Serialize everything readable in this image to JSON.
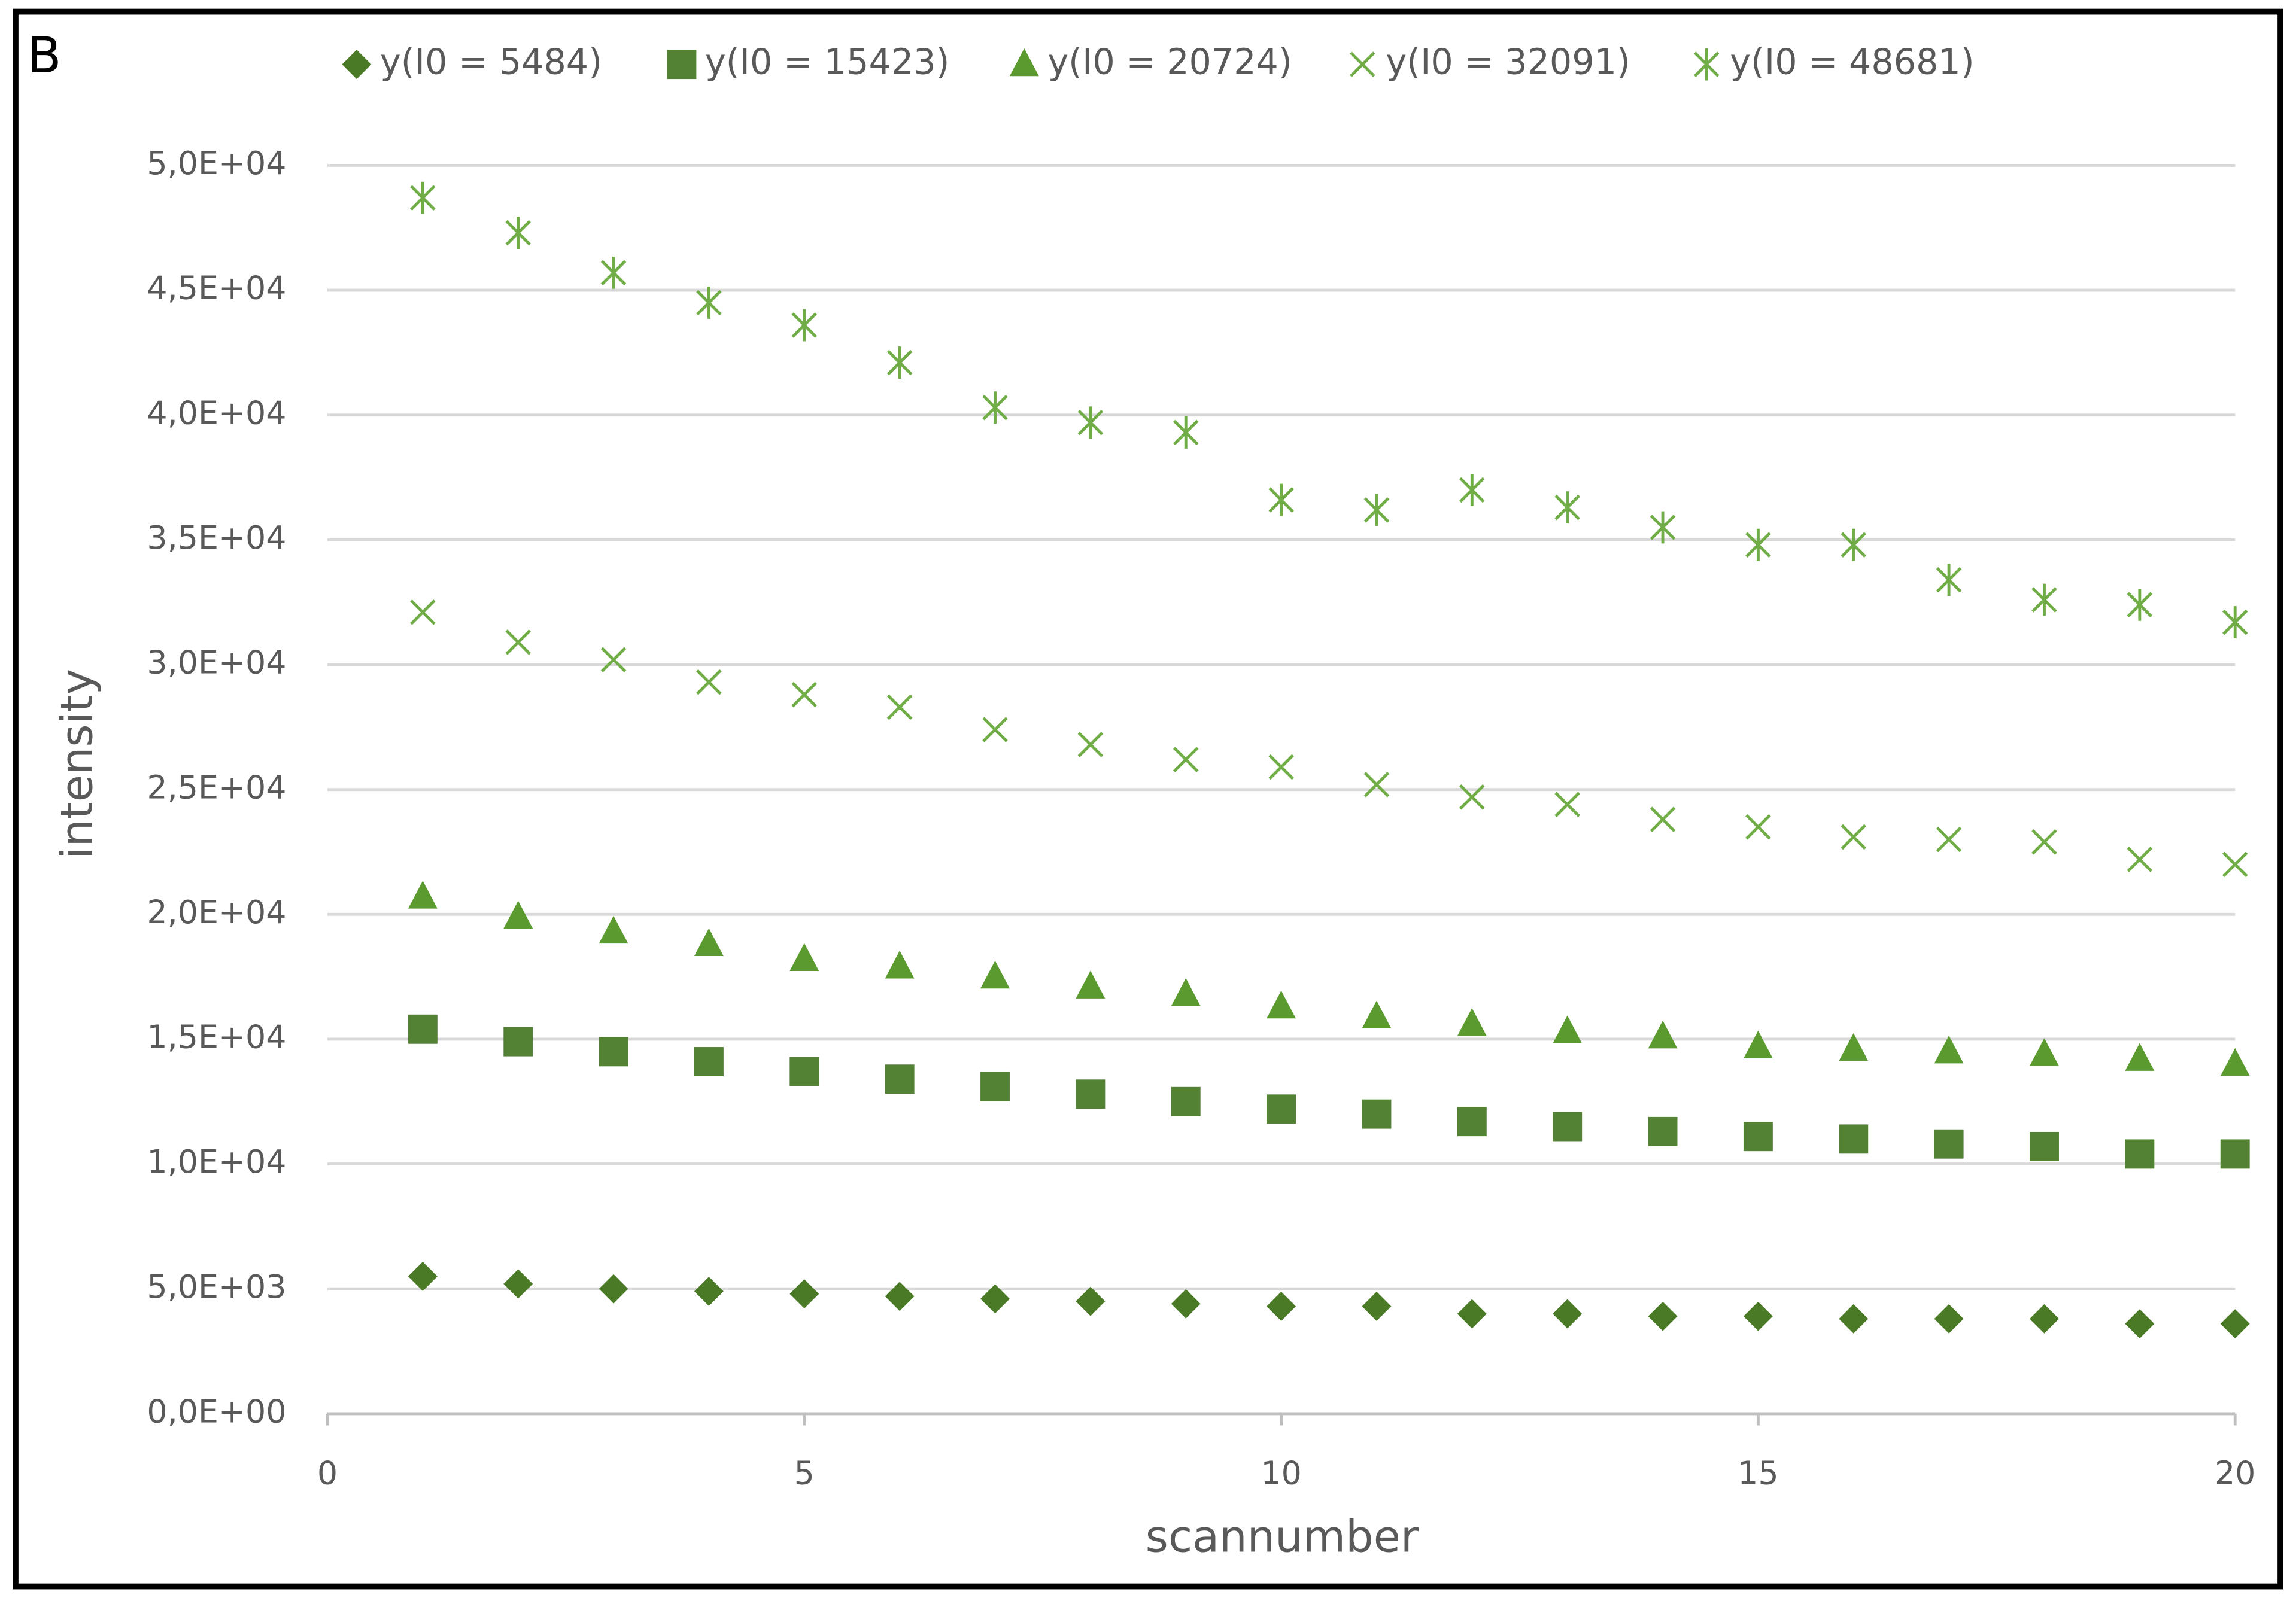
{
  "chart_data": {
    "type": "scatter",
    "panel_label": "B",
    "x_label": "scannumber",
    "y_label": "intensity",
    "x": [
      1,
      2,
      3,
      4,
      5,
      6,
      7,
      8,
      9,
      10,
      11,
      12,
      13,
      14,
      15,
      16,
      17,
      18,
      19,
      20
    ],
    "xlim": [
      0,
      20
    ],
    "xticks": [
      0,
      5,
      10,
      15,
      20
    ],
    "ylim": [
      0,
      50000
    ],
    "yticks": [
      {
        "value": 0,
        "label": "0,0E+00"
      },
      {
        "value": 5000,
        "label": "5,0E+03"
      },
      {
        "value": 10000,
        "label": "1,0E+04"
      },
      {
        "value": 15000,
        "label": "1,5E+04"
      },
      {
        "value": 20000,
        "label": "2,0E+04"
      },
      {
        "value": 25000,
        "label": "2,5E+04"
      },
      {
        "value": 30000,
        "label": "3,0E+04"
      },
      {
        "value": 35000,
        "label": "3,5E+04"
      },
      {
        "value": 40000,
        "label": "4,0E+04"
      },
      {
        "value": 45000,
        "label": "4,5E+04"
      },
      {
        "value": 50000,
        "label": "5,0E+04"
      }
    ],
    "grid": true,
    "legend": "top",
    "series": [
      {
        "name": "y(I0 = 5484)",
        "color": "#4a7a25",
        "marker": "diamond",
        "values": [
          5500,
          5200,
          5000,
          4900,
          4800,
          4700,
          4600,
          4500,
          4400,
          4300,
          4300,
          4000,
          4000,
          3900,
          3900,
          3800,
          3800,
          3800,
          3600,
          3600
        ]
      },
      {
        "name": "y(I0 = 15423)",
        "color": "#548235",
        "marker": "square",
        "values": [
          15400,
          14900,
          14500,
          14100,
          13700,
          13400,
          13100,
          12800,
          12500,
          12200,
          12000,
          11700,
          11500,
          11300,
          11100,
          11000,
          10800,
          10700,
          10400,
          10400
        ]
      },
      {
        "name": "y(I0 = 20724)",
        "color": "#5b9a2f",
        "marker": "triangle",
        "values": [
          20700,
          19900,
          19300,
          18800,
          18200,
          17900,
          17500,
          17100,
          16800,
          16300,
          15900,
          15600,
          15300,
          15100,
          14700,
          14600,
          14500,
          14400,
          14200,
          14000
        ]
      },
      {
        "name": "y(I0 = 32091)",
        "color": "#70ad47",
        "marker": "x",
        "values": [
          32100,
          30900,
          30200,
          29300,
          28800,
          28300,
          27400,
          26800,
          26200,
          25900,
          25200,
          24700,
          24400,
          23800,
          23500,
          23100,
          23000,
          22900,
          22200,
          22000
        ]
      },
      {
        "name": "y(I0 = 48681)",
        "color": "#70ad47",
        "marker": "asterisk",
        "values": [
          48700,
          47300,
          45700,
          44500,
          43600,
          42100,
          40300,
          39700,
          39300,
          36600,
          36200,
          37000,
          36300,
          35500,
          34800,
          34800,
          33400,
          32600,
          32400,
          31700
        ]
      }
    ]
  }
}
